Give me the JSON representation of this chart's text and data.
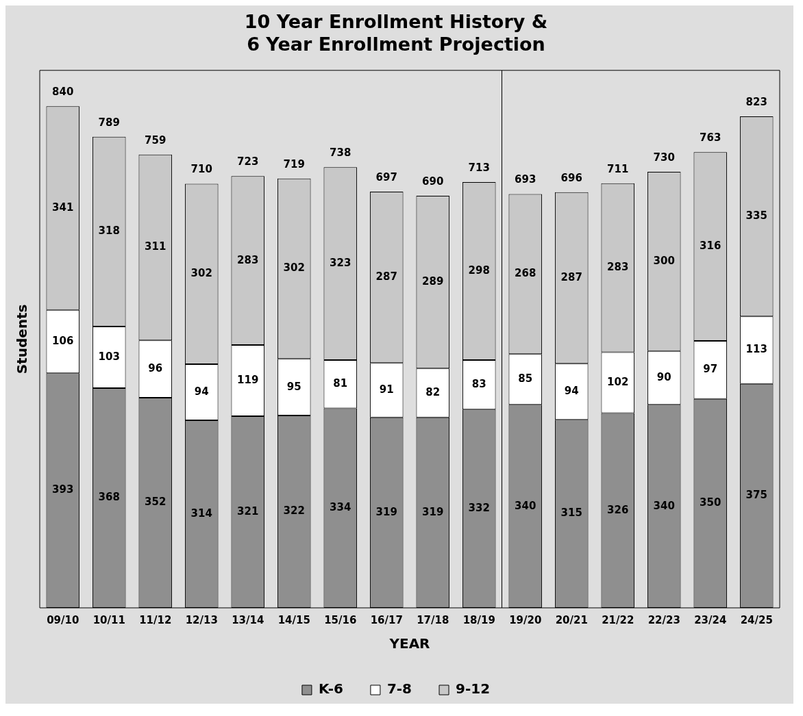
{
  "chart_data": {
    "type": "bar",
    "title": "10 Year Enrollment History &\n6 Year Enrollment Projection",
    "xlabel": "YEAR",
    "ylabel": "Students",
    "categories": [
      "09/10",
      "10/11",
      "11/12",
      "12/13",
      "13/14",
      "14/15",
      "15/16",
      "16/17",
      "17/18",
      "18/19",
      "19/20",
      "20/21",
      "21/22",
      "22/23",
      "23/24",
      "24/25"
    ],
    "stacked": true,
    "data_labels": true,
    "grid": false,
    "legend": "bottom",
    "tick_labels": "x",
    "series": [
      {
        "name": "K-6",
        "color": "#8f8f8f",
        "values": [
          393,
          368,
          352,
          314,
          321,
          322,
          334,
          319,
          319,
          332,
          340,
          315,
          326,
          340,
          350,
          375
        ]
      },
      {
        "name": "7-8",
        "color": "#ffffff",
        "values": [
          106,
          103,
          96,
          94,
          119,
          95,
          81,
          91,
          82,
          83,
          85,
          94,
          102,
          90,
          97,
          113
        ]
      },
      {
        "name": "9-12",
        "color": "#c8c8c8",
        "values": [
          341,
          318,
          311,
          302,
          283,
          302,
          323,
          287,
          289,
          298,
          268,
          287,
          283,
          300,
          316,
          335
        ]
      }
    ],
    "totals": [
      "840",
      "789",
      "759",
      "710",
      "723",
      "719",
      "738",
      "697",
      "690",
      "713",
      "693",
      "696",
      "711",
      "730",
      "763",
      "823"
    ],
    "ref_lines": [
      {
        "axis": "x",
        "value": "19/20",
        "color": "#000000"
      }
    ]
  }
}
